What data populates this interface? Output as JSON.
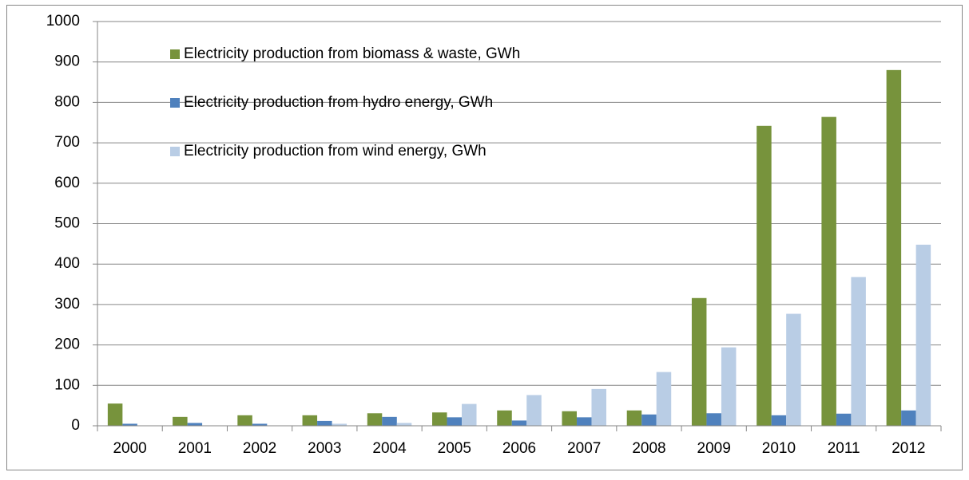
{
  "chart_data": {
    "type": "bar",
    "categories": [
      "2000",
      "2001",
      "2002",
      "2003",
      "2004",
      "2005",
      "2006",
      "2007",
      "2008",
      "2009",
      "2010",
      "2011",
      "2012"
    ],
    "series": [
      {
        "name": "Electricity production from biomass & waste, GWh",
        "color": "#77933c",
        "values": [
          55,
          22,
          26,
          26,
          31,
          33,
          38,
          36,
          38,
          316,
          742,
          764,
          880
        ]
      },
      {
        "name": "Electricity production from hydro energy, GWh",
        "color": "#4f81bd",
        "values": [
          5,
          7,
          5,
          12,
          22,
          21,
          13,
          21,
          28,
          31,
          26,
          30,
          38
        ]
      },
      {
        "name": "Electricity production from wind energy, GWh",
        "color": "#b9cde5",
        "values": [
          0,
          0,
          1,
          5,
          7,
          54,
          76,
          91,
          133,
          194,
          277,
          368,
          448
        ]
      }
    ],
    "ylim": [
      0,
      1000
    ],
    "yticks": [
      0,
      100,
      200,
      300,
      400,
      500,
      600,
      700,
      800,
      900,
      1000
    ],
    "grid": true
  }
}
